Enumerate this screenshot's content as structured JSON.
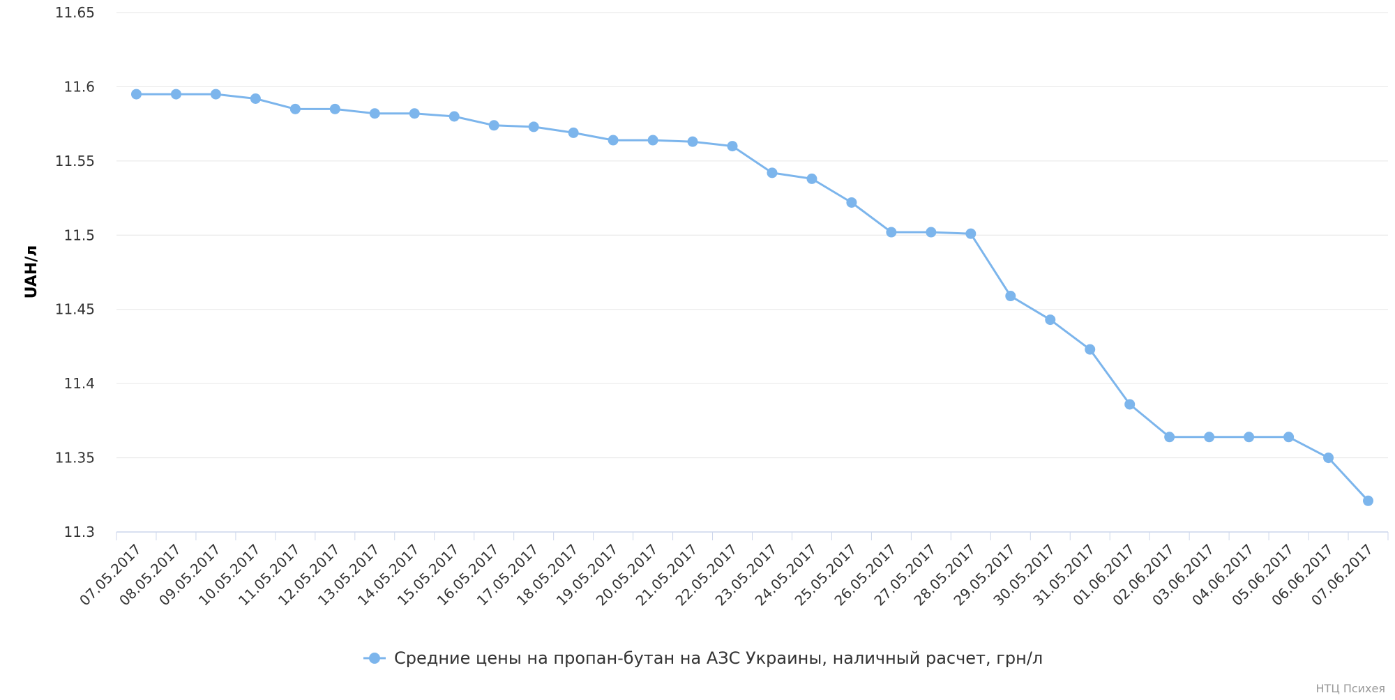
{
  "chart_data": {
    "type": "line",
    "ylabel": "UAH/л",
    "ylim": [
      11.3,
      11.65
    ],
    "y_ticks": [
      "11.3",
      "11.35",
      "11.4",
      "11.45",
      "11.5",
      "11.55",
      "11.6",
      "11.65"
    ],
    "grid": true,
    "legend_position": "bottom-center",
    "categories": [
      "07.05.2017",
      "08.05.2017",
      "09.05.2017",
      "10.05.2017",
      "11.05.2017",
      "12.05.2017",
      "13.05.2017",
      "14.05.2017",
      "15.05.2017",
      "16.05.2017",
      "17.05.2017",
      "18.05.2017",
      "19.05.2017",
      "20.05.2017",
      "21.05.2017",
      "22.05.2017",
      "23.05.2017",
      "24.05.2017",
      "25.05.2017",
      "26.05.2017",
      "27.05.2017",
      "28.05.2017",
      "29.05.2017",
      "30.05.2017",
      "31.05.2017",
      "01.06.2017",
      "02.06.2017",
      "03.06.2017",
      "04.06.2017",
      "05.06.2017",
      "06.06.2017",
      "07.06.2017"
    ],
    "series": [
      {
        "name": "Средние цены на пропан-бутан на АЗС Украины, наличный расчет, грн/л",
        "color": "#7cb5ec",
        "values": [
          11.595,
          11.595,
          11.595,
          11.592,
          11.585,
          11.585,
          11.582,
          11.582,
          11.58,
          11.574,
          11.573,
          11.569,
          11.564,
          11.564,
          11.563,
          11.56,
          11.542,
          11.538,
          11.522,
          11.502,
          11.502,
          11.501,
          11.459,
          11.443,
          11.423,
          11.386,
          11.364,
          11.364,
          11.364,
          11.364,
          11.35,
          11.321
        ]
      }
    ]
  },
  "credit": "НТЦ Психея"
}
